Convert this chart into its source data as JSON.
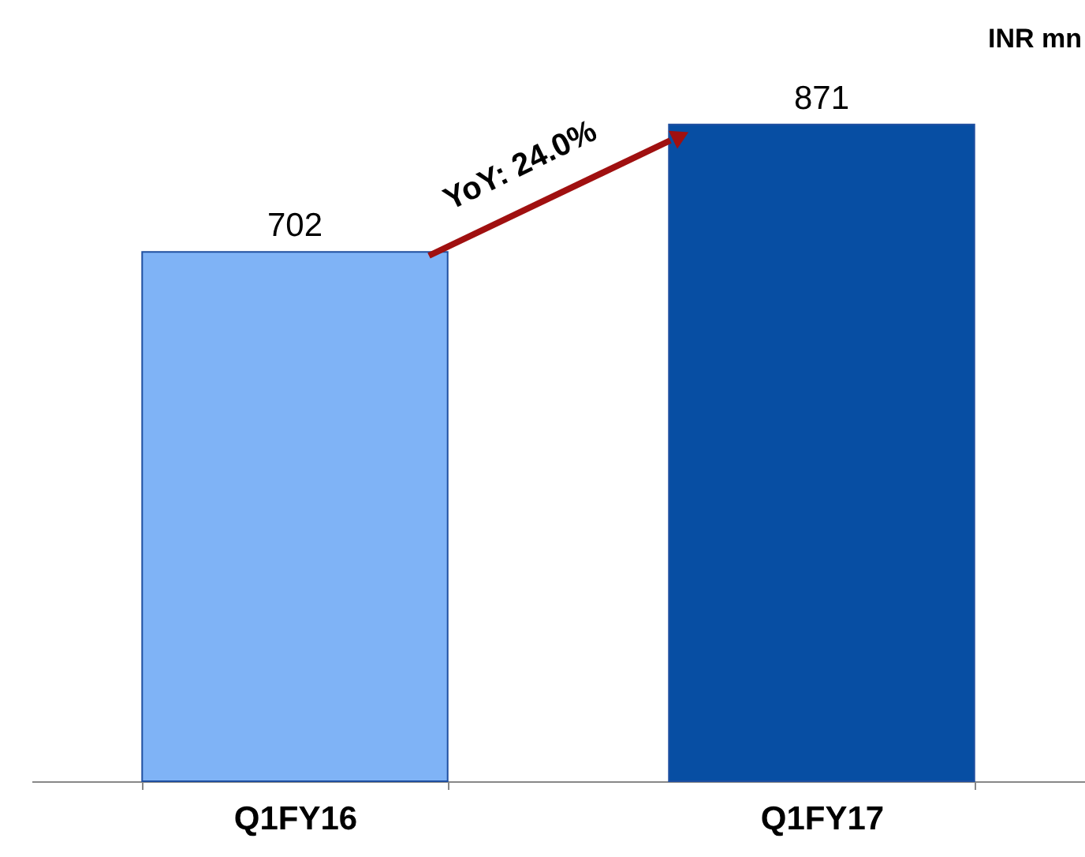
{
  "chart_data": {
    "type": "bar",
    "ylabel": "INR mn",
    "categories": [
      "Q1FY16",
      "Q1FY17"
    ],
    "values": [
      702,
      871
    ],
    "colors": [
      "#7fb3f6",
      "#074ea3"
    ],
    "data_labels": true,
    "annotations": [
      "YoY: 24.0%"
    ],
    "grid": false
  }
}
